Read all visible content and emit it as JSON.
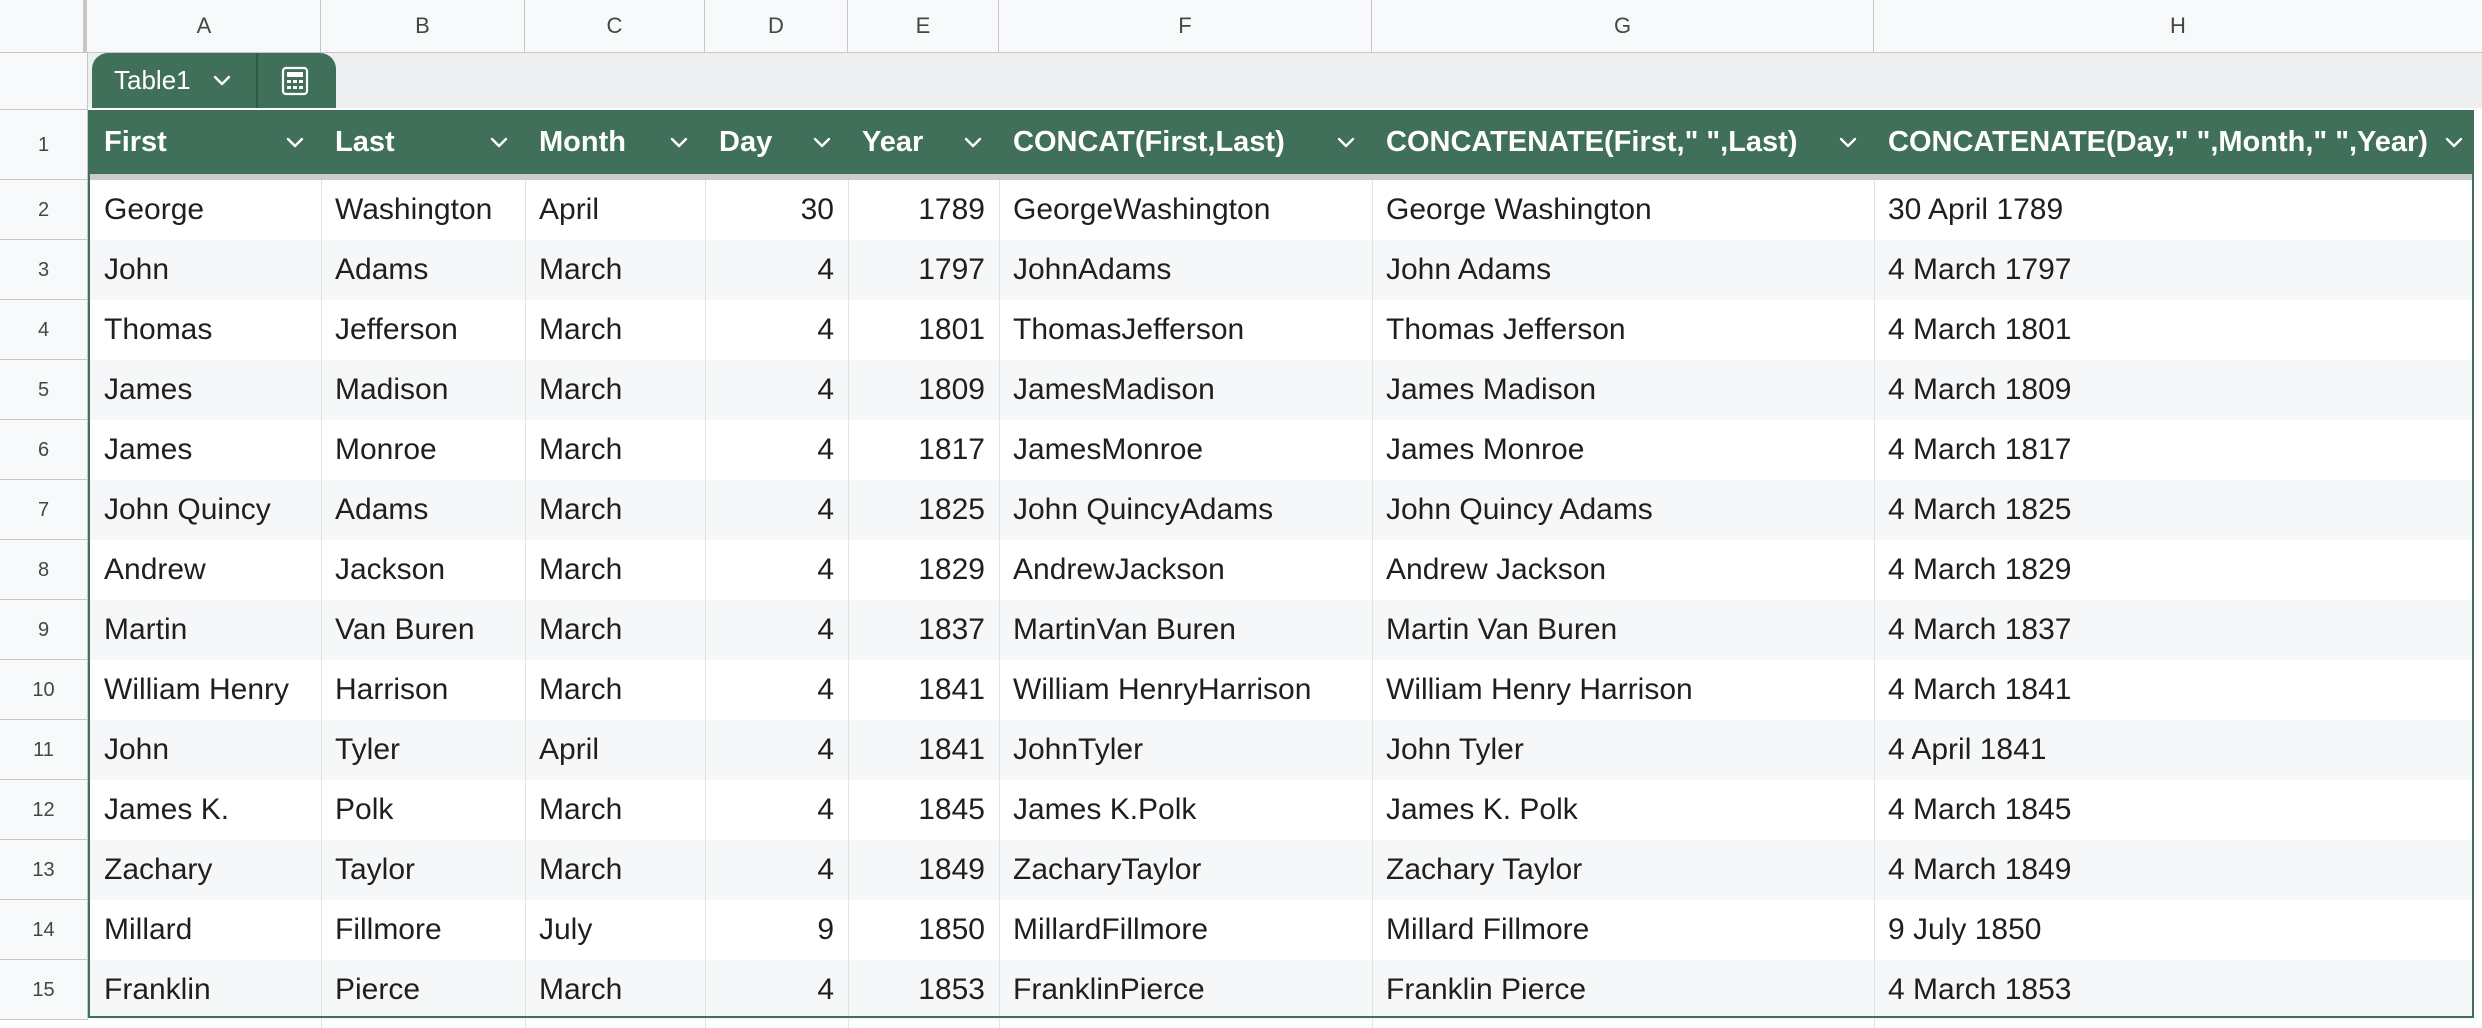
{
  "columns": {
    "A": "A",
    "B": "B",
    "C": "C",
    "D": "D",
    "E": "E",
    "F": "F",
    "G": "G",
    "H": "H"
  },
  "table": {
    "name": "Table1",
    "header_color": "#40705a",
    "band_color": "#f5f7f8"
  },
  "headers": {
    "first": "First",
    "last": "Last",
    "month": "Month",
    "day": "Day",
    "year": "Year",
    "concat": "CONCAT(First,Last)",
    "concatenate_name": "CONCATENATE(First,\" \",Last)",
    "concatenate_date": "CONCATENATE(Day,\" \",Month,\" \",Year)"
  },
  "row_numbers": [
    "1",
    "2",
    "3",
    "4",
    "5",
    "6",
    "7",
    "8",
    "9",
    "10",
    "11",
    "12",
    "13",
    "14",
    "15"
  ],
  "rows": [
    {
      "first": "George",
      "last": "Washington",
      "month": "April",
      "day": "30",
      "year": "1789",
      "concat": "GeorgeWashington",
      "full": "George Washington",
      "date": "30 April 1789"
    },
    {
      "first": "John",
      "last": "Adams",
      "month": "March",
      "day": "4",
      "year": "1797",
      "concat": "JohnAdams",
      "full": "John Adams",
      "date": "4 March 1797"
    },
    {
      "first": "Thomas",
      "last": "Jefferson",
      "month": "March",
      "day": "4",
      "year": "1801",
      "concat": "ThomasJefferson",
      "full": "Thomas Jefferson",
      "date": "4 March 1801"
    },
    {
      "first": "James",
      "last": "Madison",
      "month": "March",
      "day": "4",
      "year": "1809",
      "concat": "JamesMadison",
      "full": "James Madison",
      "date": "4 March 1809"
    },
    {
      "first": "James",
      "last": "Monroe",
      "month": "March",
      "day": "4",
      "year": "1817",
      "concat": "JamesMonroe",
      "full": "James Monroe",
      "date": "4 March 1817"
    },
    {
      "first": "John Quincy",
      "last": "Adams",
      "month": "March",
      "day": "4",
      "year": "1825",
      "concat": "John QuincyAdams",
      "full": "John Quincy Adams",
      "date": "4 March 1825"
    },
    {
      "first": "Andrew",
      "last": "Jackson",
      "month": "March",
      "day": "4",
      "year": "1829",
      "concat": "AndrewJackson",
      "full": "Andrew Jackson",
      "date": "4 March 1829"
    },
    {
      "first": "Martin",
      "last": "Van Buren",
      "month": "March",
      "day": "4",
      "year": "1837",
      "concat": "MartinVan Buren",
      "full": "Martin Van Buren",
      "date": "4 March 1837"
    },
    {
      "first": "William Henry",
      "last": "Harrison",
      "month": "March",
      "day": "4",
      "year": "1841",
      "concat": "William HenryHarrison",
      "full": "William Henry Harrison",
      "date": "4 March 1841"
    },
    {
      "first": "John",
      "last": "Tyler",
      "month": "April",
      "day": "4",
      "year": "1841",
      "concat": "JohnTyler",
      "full": "John Tyler",
      "date": "4 April 1841"
    },
    {
      "first": "James K.",
      "last": "Polk",
      "month": "March",
      "day": "4",
      "year": "1845",
      "concat": "James K.Polk",
      "full": "James K. Polk",
      "date": "4 March 1845"
    },
    {
      "first": "Zachary",
      "last": "Taylor",
      "month": "March",
      "day": "4",
      "year": "1849",
      "concat": "ZacharyTaylor",
      "full": "Zachary Taylor",
      "date": "4 March 1849"
    },
    {
      "first": "Millard",
      "last": "Fillmore",
      "month": "July",
      "day": "9",
      "year": "1850",
      "concat": "MillardFillmore",
      "full": "Millard Fillmore",
      "date": "9 July 1850"
    },
    {
      "first": "Franklin",
      "last": "Pierce",
      "month": "March",
      "day": "4",
      "year": "1853",
      "concat": "FranklinPierce",
      "full": "Franklin Pierce",
      "date": "4 March 1853"
    }
  ],
  "icons": {
    "dropdown": "chevron-down-icon",
    "calculator": "calculator-icon"
  }
}
